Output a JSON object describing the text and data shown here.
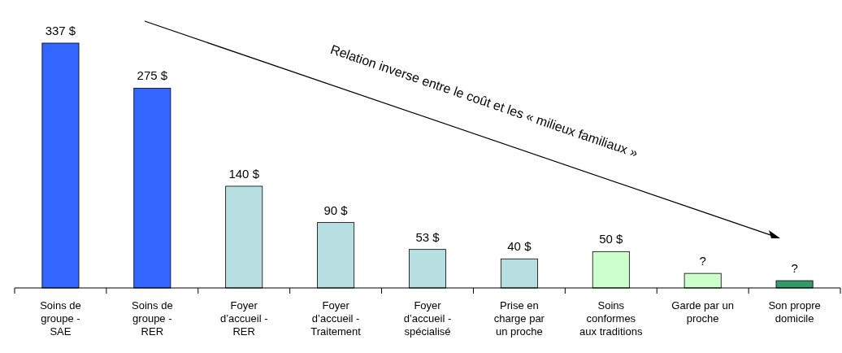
{
  "chart_data": {
    "type": "bar",
    "categories": [
      "Soins de\ngroupe -\nSAE",
      "Soins de\ngroupe -\nRER",
      "Foyer\nd’accueil -\nRER",
      "Foyer\nd’accueil -\nTraitement",
      "Foyer\nd’accueil -\nspécialisé",
      "Prise en\ncharge par\nun proche",
      "Soins\nconformes\naux traditions",
      "Garde par un\nproche",
      "Son propre\ndomicile"
    ],
    "values": [
      337,
      275,
      140,
      90,
      53,
      40,
      50,
      20,
      10
    ],
    "colors": [
      "#3366ff",
      "#3366ff",
      "#b7dfe2",
      "#b7dfe2",
      "#b7dfe2",
      "#b7dfe2",
      "#ccffcc",
      "#ccffcc",
      "#339966"
    ],
    "value_labels": [
      "337 $",
      "275 $",
      "140 $",
      "90 $",
      "53 $",
      "40 $",
      "50 $",
      "?",
      "?"
    ],
    "ylim": [
      0,
      337
    ],
    "annotations": [
      "Relation inverse entre le coût et les « milieux familiaux »"
    ]
  }
}
